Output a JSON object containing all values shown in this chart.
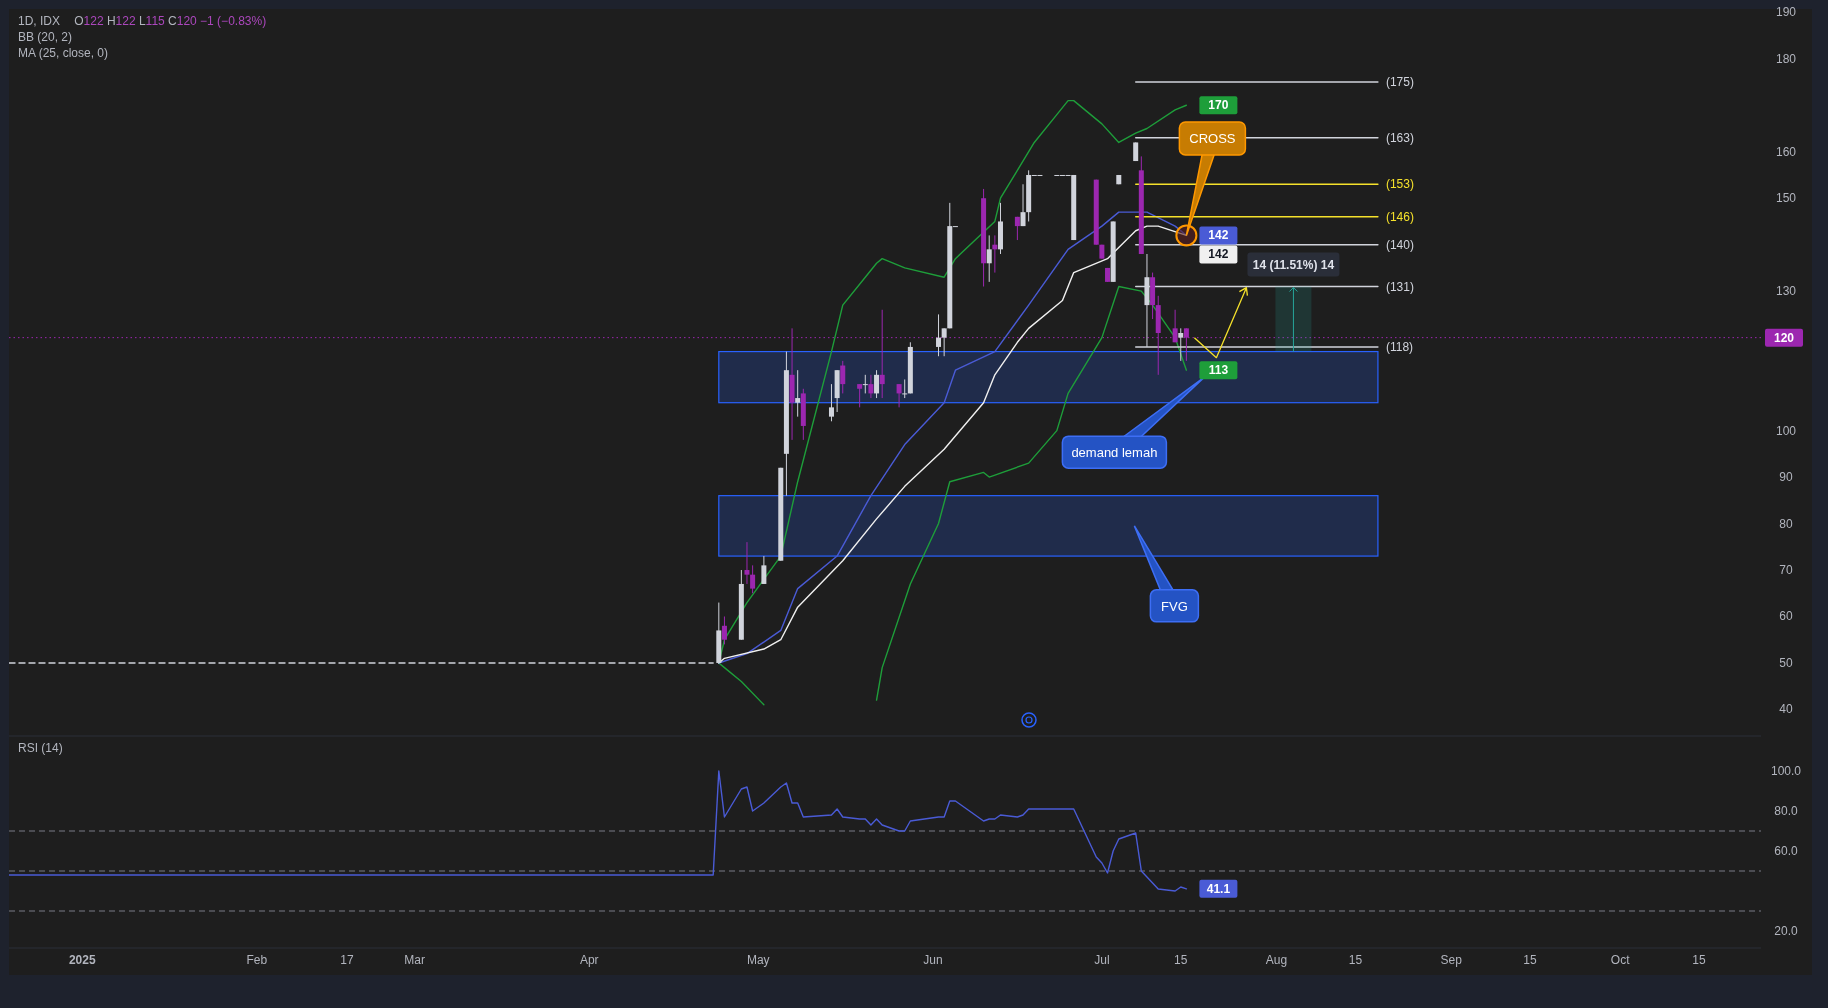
{
  "chart_data": [
    {
      "type": "candlestick",
      "title": "1D, IDX",
      "subtitle": "O122 H122 L115 C120 −1 (−0.83%)",
      "annotations": [
        "BB (20, 2)",
        "MA (25, close, 0)",
        "demand lemah",
        "FVG",
        {
          "text": "CROSS",
          "x": "2025-07-16",
          "y": 142
        }
      ],
      "xlim": [
        "2024-12-19",
        "2025-10-26"
      ],
      "ylim": [
        34.5,
        190.5
      ],
      "yticks": [
        40,
        50,
        60,
        70,
        80,
        90,
        100,
        130,
        150,
        160,
        180,
        190
      ],
      "tick_labels": "y",
      "ref_lines": [
        {
          "axis": "y",
          "value": 120,
          "label": "120",
          "color": "#9c27b0",
          "line_style": "dotted"
        }
      ],
      "bands": [
        {
          "axis": "y",
          "from": 106,
          "to": 117,
          "color": "#2962ff"
        },
        {
          "axis": "y",
          "from": 73,
          "to": 86,
          "color": "#2962ff"
        }
      ],
      "x": [
        "2025-04-24",
        "2025-04-25",
        "2025-04-28",
        "2025-04-29",
        "2025-04-30",
        "2025-05-02",
        "2025-05-05",
        "2025-05-06",
        "2025-05-07",
        "2025-05-08",
        "2025-05-09",
        "2025-05-14",
        "2025-05-15",
        "2025-05-16",
        "2025-05-19",
        "2025-05-20",
        "2025-05-21",
        "2025-05-22",
        "2025-05-23",
        "2025-05-26",
        "2025-05-27",
        "2025-05-28",
        "2025-06-02",
        "2025-06-03",
        "2025-06-04",
        "2025-06-05",
        "2025-06-10",
        "2025-06-11",
        "2025-06-12",
        "2025-06-13",
        "2025-06-16",
        "2025-06-17",
        "2025-06-18",
        "2025-06-19",
        "2025-06-20",
        "2025-06-23",
        "2025-06-24",
        "2025-06-25",
        "2025-06-26",
        "2025-06-30",
        "2025-07-01",
        "2025-07-02",
        "2025-07-03",
        "2025-07-04",
        "2025-07-07",
        "2025-07-08",
        "2025-07-09",
        "2025-07-10",
        "2025-07-11",
        "2025-07-14",
        "2025-07-15",
        "2025-07-16"
      ],
      "ohlc": [
        [
          50,
          63,
          50,
          57
        ],
        [
          58,
          60,
          54,
          55
        ],
        [
          55,
          70,
          55,
          67
        ],
        [
          70,
          76,
          67,
          69
        ],
        [
          69,
          71,
          65,
          66
        ],
        [
          67,
          73,
          67,
          71
        ],
        [
          72,
          92,
          72,
          92
        ],
        [
          95,
          117,
          86,
          113
        ],
        [
          112,
          122,
          98,
          106
        ],
        [
          106,
          113,
          103,
          107
        ],
        [
          108,
          109,
          98,
          101
        ],
        [
          103,
          110,
          102,
          105
        ],
        [
          107,
          113,
          104,
          113
        ],
        [
          114,
          115,
          108,
          110
        ],
        [
          110,
          110,
          105,
          109
        ],
        [
          110,
          112,
          108,
          110
        ],
        [
          110,
          112,
          107,
          108
        ],
        [
          108,
          113,
          107,
          112
        ],
        [
          112,
          126,
          107,
          110
        ],
        [
          110,
          110,
          105,
          108
        ],
        [
          108,
          111,
          107,
          108
        ],
        [
          108,
          119,
          108,
          118
        ],
        [
          118,
          125,
          116,
          120
        ],
        [
          120,
          122,
          116,
          122
        ],
        [
          122,
          149,
          122,
          144
        ],
        [
          144,
          144,
          144,
          144
        ],
        [
          150,
          152,
          131,
          136
        ],
        [
          136,
          142,
          132,
          139
        ],
        [
          140,
          142,
          134,
          139
        ],
        [
          139,
          149,
          138,
          145
        ],
        [
          146,
          146,
          141,
          144
        ],
        [
          144,
          153,
          144,
          147
        ],
        [
          147,
          156,
          145,
          155
        ],
        [
          155,
          155,
          155,
          155
        ],
        [
          155,
          155,
          155,
          155
        ],
        [
          155,
          155,
          155,
          155
        ],
        [
          155,
          155,
          155,
          155
        ],
        [
          155,
          155,
          155,
          155
        ],
        [
          141,
          155,
          141,
          155
        ],
        [
          154,
          154,
          140,
          140
        ],
        [
          140,
          140,
          137,
          137
        ],
        [
          135,
          135,
          132,
          132
        ],
        [
          132,
          145,
          132,
          145
        ],
        [
          153,
          155,
          153,
          155
        ],
        [
          158,
          162,
          158,
          162
        ],
        [
          156,
          159,
          138,
          138
        ],
        [
          127,
          138,
          118,
          133
        ],
        [
          133,
          134,
          124,
          127
        ],
        [
          127,
          129,
          112,
          121
        ],
        [
          122,
          126,
          119,
          119
        ],
        [
          120,
          122,
          115,
          121
        ],
        [
          122,
          122,
          115,
          120
        ]
      ],
      "colors": [
        "#d1d4dc",
        "#9c27b0",
        "#d1d4dc",
        "#9c27b0",
        "#9c27b0",
        "#d1d4dc",
        "#d1d4dc",
        "#d1d4dc",
        "#9c27b0",
        "#d1d4dc",
        "#9c27b0",
        "#d1d4dc",
        "#d1d4dc",
        "#9c27b0",
        "#9c27b0",
        "#d1d4dc",
        "#9c27b0",
        "#d1d4dc",
        "#9c27b0",
        "#9c27b0",
        "#d1d4dc",
        "#d1d4dc",
        "#d1d4dc",
        "#d1d4dc",
        "#d1d4dc",
        "#d1d4dc",
        "#9c27b0",
        "#d1d4dc",
        "#9c27b0",
        "#d1d4dc",
        "#9c27b0",
        "#d1d4dc",
        "#d1d4dc",
        "#d1d4dc",
        "#d1d4dc",
        "#d1d4dc",
        "#d1d4dc",
        "#d1d4dc",
        "#d1d4dc",
        "#9c27b0",
        "#9c27b0",
        "#9c27b0",
        "#d1d4dc",
        "#d1d4dc",
        "#d1d4dc",
        "#9c27b0",
        "#d1d4dc",
        "#9c27b0",
        "#9c27b0",
        "#9c27b0",
        "#d1d4dc",
        "#9c27b0"
      ],
      "series": [
        {
          "type": "line",
          "color": "#d1d4dc",
          "line_style": "dashed",
          "x": [
            "2024-12-19",
            "2025-04-23"
          ],
          "values": [
            50,
            50
          ]
        },
        {
          "type": "line",
          "color": "#1e9e3a",
          "x": [
            "2025-04-24",
            "2025-04-25",
            "2025-04-29",
            "2025-05-05",
            "2025-05-08",
            "2025-05-14",
            "2025-05-16",
            "2025-05-20",
            "2025-05-22",
            "2025-05-23",
            "2025-05-27",
            "2025-06-03",
            "2025-06-05",
            "2025-06-12",
            "2025-06-13",
            "2025-06-19",
            "2025-06-23",
            "2025-06-25",
            "2025-06-26",
            "2025-07-01",
            "2025-07-04",
            "2025-07-07",
            "2025-07-09",
            "2025-07-14",
            "2025-07-16"
          ],
          "values": [
            50,
            55,
            63,
            73,
            89,
            117,
            127,
            133,
            136,
            137,
            135,
            133,
            137,
            145,
            150,
            162,
            168,
            171,
            171,
            166,
            162,
            164,
            165,
            169,
            170
          ],
          "value_labels": [
            null,
            null,
            null,
            null,
            null,
            null,
            null,
            null,
            null,
            null,
            null,
            null,
            null,
            null,
            null,
            null,
            null,
            null,
            null,
            null,
            null,
            null,
            null,
            null,
            "170"
          ]
        },
        {
          "type": "line",
          "color": "#1e9e3a",
          "x": [
            "2025-04-24",
            "2025-04-25",
            "2025-04-28",
            "2025-05-02",
            "2025-05-05",
            "2025-05-21",
            "2025-05-22",
            "2025-05-23",
            "2025-05-28",
            "2025-06-02",
            "2025-06-04",
            "2025-06-10",
            "2025-06-11",
            "2025-06-18",
            "2025-06-23",
            "2025-06-25",
            "2025-07-01",
            "2025-07-04",
            "2025-07-08",
            "2025-07-10",
            "2025-07-14",
            "2025-07-16"
          ],
          "values": [
            50,
            49,
            46,
            41,
            null,
            null,
            42,
            49,
            67,
            80,
            89,
            91,
            90,
            93,
            100,
            108,
            120,
            131,
            130,
            127,
            120,
            113
          ],
          "value_labels": [
            null,
            null,
            null,
            null,
            null,
            null,
            null,
            null,
            null,
            null,
            null,
            null,
            null,
            null,
            null,
            null,
            null,
            null,
            null,
            null,
            null,
            "113"
          ]
        },
        {
          "type": "line",
          "color": "#4a5bd6",
          "x": [
            "2025-04-24",
            "2025-04-29",
            "2025-05-05",
            "2025-05-08",
            "2025-05-15",
            "2025-05-21",
            "2025-05-27",
            "2025-06-03",
            "2025-06-05",
            "2025-06-12",
            "2025-06-18",
            "2025-06-25",
            "2025-07-01",
            "2025-07-04",
            "2025-07-09",
            "2025-07-14",
            "2025-07-16"
          ],
          "values": [
            50,
            52,
            57,
            66,
            73,
            86,
            97,
            106,
            113,
            117,
            127,
            139,
            144,
            147,
            147,
            144,
            142
          ],
          "value_labels": [
            null,
            null,
            null,
            null,
            null,
            null,
            null,
            null,
            null,
            null,
            null,
            null,
            null,
            null,
            null,
            null,
            "142"
          ]
        },
        {
          "type": "line",
          "color": "#f0f0f0",
          "x": [
            "2025-04-24",
            "2025-04-25",
            "2025-05-02",
            "2025-05-05",
            "2025-05-08",
            "2025-05-16",
            "2025-05-22",
            "2025-05-27",
            "2025-06-03",
            "2025-06-10",
            "2025-06-12",
            "2025-06-16",
            "2025-06-18",
            "2025-06-24",
            "2025-06-26",
            "2025-07-02",
            "2025-07-07",
            "2025-07-09",
            "2025-07-11",
            "2025-07-16"
          ],
          "values": [
            50,
            51,
            53,
            55,
            62,
            72,
            81,
            88,
            96,
            106,
            112,
            119,
            122,
            128,
            134,
            137,
            143,
            144,
            144,
            142
          ],
          "value_labels": [
            null,
            null,
            null,
            null,
            null,
            null,
            null,
            null,
            null,
            null,
            null,
            null,
            null,
            null,
            null,
            null,
            null,
            null,
            null,
            "142"
          ]
        },
        {
          "type": "line",
          "color": "#d1d4dc",
          "x": [
            "2025-07-07",
            "2025-08-19"
          ],
          "values": [
            175,
            175
          ],
          "value_labels": [
            null,
            "(175)"
          ]
        },
        {
          "type": "line",
          "color": "#d1d4dc",
          "x": [
            "2025-07-07",
            "2025-08-19"
          ],
          "values": [
            163,
            163
          ],
          "value_labels": [
            null,
            "(163)"
          ]
        },
        {
          "type": "line",
          "color": "#f5e12b",
          "x": [
            "2025-07-07",
            "2025-08-19"
          ],
          "values": [
            153,
            153
          ],
          "value_labels": [
            null,
            "(153)"
          ]
        },
        {
          "type": "line",
          "color": "#f5e12b",
          "x": [
            "2025-07-07",
            "2025-08-19"
          ],
          "values": [
            146,
            146
          ],
          "value_labels": [
            null,
            "(146)"
          ]
        },
        {
          "type": "line",
          "color": "#d1d4dc",
          "x": [
            "2025-07-07",
            "2025-08-19"
          ],
          "values": [
            140,
            140
          ],
          "value_labels": [
            null,
            "(140)"
          ]
        },
        {
          "type": "line",
          "color": "#d1d4dc",
          "x": [
            "2025-07-07",
            "2025-08-19"
          ],
          "values": [
            131,
            131
          ],
          "value_labels": [
            null,
            "(131)"
          ]
        },
        {
          "type": "line",
          "color": "#d1d4dc",
          "x": [
            "2025-07-07",
            "2025-08-19"
          ],
          "values": [
            118,
            118
          ],
          "value_labels": [
            null,
            "(118)"
          ]
        },
        {
          "type": "bar",
          "color": "#26a69a",
          "x": [
            "2025-08-04"
          ],
          "base": [
            117
          ],
          "values": [
            14
          ],
          "value_labels": [
            "14 (11.51%) 14"
          ]
        }
      ]
    },
    {
      "type": "line",
      "title": "RSI (14)",
      "xlim": [
        "2024-12-19",
        "2025-10-26"
      ],
      "ylim": [
        12,
        117
      ],
      "yticks": [
        {
          "value": 20,
          "label": "20.0"
        },
        {
          "value": 60,
          "label": "60.0"
        },
        {
          "value": 80,
          "label": "80.0"
        },
        {
          "value": 100,
          "label": "100.0"
        }
      ],
      "xticks": [
        {
          "value": "2025-01-01",
          "label": "2025"
        },
        {
          "value": "2025-02-01",
          "label": "Feb"
        },
        {
          "value": "2025-02-17",
          "label": "17"
        },
        {
          "value": "2025-03-01",
          "label": "Mar"
        },
        {
          "value": "2025-04-01",
          "label": "Apr"
        },
        {
          "value": "2025-05-01",
          "label": "May"
        },
        {
          "value": "2025-06-01",
          "label": "Jun"
        },
        {
          "value": "2025-07-01",
          "label": "Jul"
        },
        {
          "value": "2025-07-15",
          "label": "15"
        },
        {
          "value": "2025-08-01",
          "label": "Aug"
        },
        {
          "value": "2025-08-15",
          "label": "15"
        },
        {
          "value": "2025-09-01",
          "label": "Sep"
        },
        {
          "value": "2025-09-15",
          "label": "15"
        },
        {
          "value": "2025-10-01",
          "label": "Oct"
        },
        {
          "value": "2025-10-15",
          "label": "15"
        }
      ],
      "ref_lines": [
        {
          "axis": "y",
          "value": 70,
          "color": "#787b86",
          "line_style": "dashed"
        },
        {
          "axis": "y",
          "value": 50,
          "color": "#787b86",
          "line_style": "dashed"
        },
        {
          "axis": "y",
          "value": 30,
          "color": "#787b86",
          "line_style": "dashed"
        }
      ],
      "series": [
        {
          "color": "#4a5bd6",
          "x": [
            "2024-12-19",
            "2025-04-23",
            "2025-04-24",
            "2025-04-25",
            "2025-04-28",
            "2025-04-29",
            "2025-04-30",
            "2025-05-02",
            "2025-05-05",
            "2025-05-06",
            "2025-05-07",
            "2025-05-08",
            "2025-05-09",
            "2025-05-14",
            "2025-05-15",
            "2025-05-16",
            "2025-05-19",
            "2025-05-20",
            "2025-05-21",
            "2025-05-22",
            "2025-05-23",
            "2025-05-26",
            "2025-05-27",
            "2025-05-28",
            "2025-06-02",
            "2025-06-03",
            "2025-06-04",
            "2025-06-05",
            "2025-06-10",
            "2025-06-11",
            "2025-06-12",
            "2025-06-13",
            "2025-06-16",
            "2025-06-17",
            "2025-06-18",
            "2025-06-19",
            "2025-06-20",
            "2025-06-23",
            "2025-06-24",
            "2025-06-25",
            "2025-06-26",
            "2025-06-30",
            "2025-07-01",
            "2025-07-02",
            "2025-07-03",
            "2025-07-04",
            "2025-07-07",
            "2025-07-08",
            "2025-07-09",
            "2025-07-10",
            "2025-07-11",
            "2025-07-14",
            "2025-07-15",
            "2025-07-16"
          ],
          "values": [
            48,
            48,
            100,
            77,
            91,
            92,
            80,
            84,
            92,
            94,
            84,
            84,
            77,
            78,
            81,
            77,
            76,
            76,
            73,
            76,
            73,
            70,
            70,
            75,
            77,
            77,
            85,
            85,
            75,
            76,
            76,
            78,
            77,
            78,
            81,
            81,
            81,
            81,
            81,
            81,
            81,
            57,
            54,
            49,
            60,
            66,
            69,
            50,
            47,
            44,
            41,
            40,
            42,
            41.1
          ],
          "value_labels": [
            null,
            null,
            null,
            null,
            null,
            null,
            null,
            null,
            null,
            null,
            null,
            null,
            null,
            null,
            null,
            null,
            null,
            null,
            null,
            null,
            null,
            null,
            null,
            null,
            null,
            null,
            null,
            null,
            null,
            null,
            null,
            null,
            null,
            null,
            null,
            null,
            null,
            null,
            null,
            null,
            null,
            null,
            null,
            null,
            null,
            null,
            null,
            null,
            null,
            null,
            null,
            null,
            null,
            "41.1"
          ]
        }
      ]
    }
  ]
}
